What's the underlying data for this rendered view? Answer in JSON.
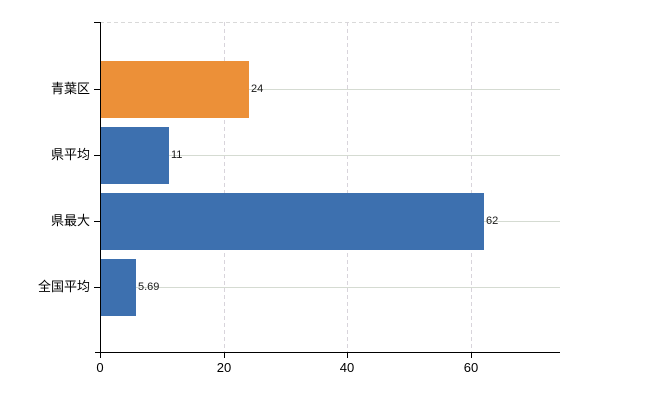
{
  "chart_data": {
    "type": "bar",
    "orientation": "horizontal",
    "categories": [
      "青葉区",
      "県平均",
      "県最大",
      "全国平均"
    ],
    "values": [
      24,
      11,
      62,
      5.69
    ],
    "value_labels": [
      "24",
      "11",
      "62",
      "5.69"
    ],
    "x_ticks": [
      0,
      20,
      40,
      60
    ],
    "x_tick_labels": [
      "0",
      "20",
      "40",
      "60"
    ],
    "xlim": [
      0,
      74.4
    ],
    "grid": {
      "horizontal": true,
      "vertical": true,
      "top_border_dashed": true
    },
    "legend": "none",
    "colors": {
      "bars": [
        "#EC9038",
        "#3D70AF",
        "#3D70AF",
        "#3D70AF"
      ],
      "axis": "#000000",
      "h_gridline": "#D5DBD2",
      "v_gridline": "#D8D4DB",
      "top_border": "#D9D9D9",
      "category_label": "#000000",
      "tick_label": "#000000",
      "value_label": "#1A1A1A",
      "background": "#FFFFFF"
    }
  }
}
